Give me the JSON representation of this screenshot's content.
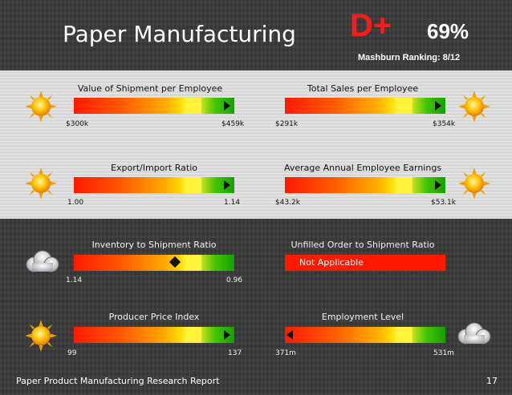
{
  "header": {
    "title": "Paper Manufacturing",
    "grade": "D+",
    "percent": "69%",
    "ranking": "Mashburn Ranking: 8/12"
  },
  "colors": {
    "grade": "#ff1a1a",
    "bar_red": "#ff1a00",
    "bar_green": "#16a000",
    "bar_yellow": "#fff23a"
  },
  "metrics": {
    "value_shipment": {
      "label": "Value of Shipment per Employee",
      "min": "$300k",
      "max": "$459k",
      "icon": "sun-icon",
      "marker": "right-triangle",
      "position_pct": 94
    },
    "total_sales": {
      "label": "Total Sales per Employee",
      "min": "$291k",
      "max": "$354k",
      "icon": "sun-icon",
      "marker": "right-triangle",
      "position_pct": 94
    },
    "export_import": {
      "label": "Export/Import Ratio",
      "min": "1.00",
      "max": "1.14",
      "icon": "sun-icon",
      "marker": "right-triangle",
      "position_pct": 94
    },
    "annual_earnings": {
      "label": "Average Annual Employee Earnings",
      "min": "$43.2k",
      "max": "$53.1k",
      "icon": "sun-icon",
      "marker": "right-triangle",
      "position_pct": 94
    },
    "inventory_ratio": {
      "label": "Inventory to Shipment Ratio",
      "min": "1.14",
      "max": "0.96",
      "icon": "cloud-icon",
      "marker": "diamond",
      "position_pct": 63
    },
    "unfilled_order": {
      "label": "Unfilled Order to Shipment Ratio",
      "status": "Not Applicable"
    },
    "producer_price": {
      "label": "Producer Price Index",
      "min": "99",
      "max": "137",
      "icon": "sun-icon",
      "marker": "right-triangle",
      "position_pct": 94
    },
    "employment": {
      "label": "Employment Level",
      "min": "371m",
      "max": "531m",
      "icon": "cloud-icon",
      "marker": "left-triangle",
      "position_pct": 3
    }
  },
  "footer": {
    "report": "Paper Product Manufacturing Research Report",
    "page": "17"
  }
}
